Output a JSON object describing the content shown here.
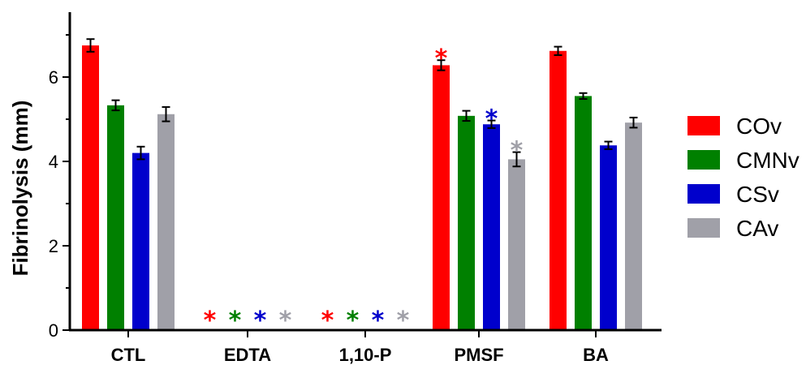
{
  "chart_data": {
    "type": "bar",
    "title": "",
    "xlabel": "",
    "ylabel": "Fibrinolysis (mm)",
    "ylim": [
      0,
      7.5
    ],
    "yticks": [
      0,
      2,
      4,
      6
    ],
    "categories": [
      "CTL",
      "EDTA",
      "1,10-P",
      "PMSF",
      "BA"
    ],
    "legend_position": "right",
    "grid": false,
    "series": [
      {
        "name": "COv",
        "color": "#ff0000",
        "values": [
          6.75,
          0,
          0,
          6.28,
          6.62
        ],
        "errors": [
          0.15,
          0,
          0,
          0.12,
          0.1
        ],
        "significant": [
          false,
          true,
          true,
          true,
          false
        ]
      },
      {
        "name": "CMNv",
        "color": "#008000",
        "values": [
          5.33,
          0,
          0,
          5.08,
          5.55
        ],
        "errors": [
          0.12,
          0,
          0,
          0.12,
          0.07
        ],
        "significant": [
          false,
          true,
          true,
          false,
          false
        ]
      },
      {
        "name": "CSv",
        "color": "#0000cc",
        "values": [
          4.2,
          0,
          0,
          4.88,
          4.38
        ],
        "errors": [
          0.15,
          0,
          0,
          0.09,
          0.09
        ],
        "significant": [
          false,
          true,
          true,
          true,
          false
        ]
      },
      {
        "name": "CAv",
        "color": "#a0a0a8",
        "values": [
          5.12,
          0,
          0,
          4.05,
          4.92
        ],
        "errors": [
          0.17,
          0,
          0,
          0.17,
          0.12
        ],
        "significant": [
          false,
          true,
          true,
          true,
          false
        ]
      }
    ],
    "significance_marker": "*"
  }
}
